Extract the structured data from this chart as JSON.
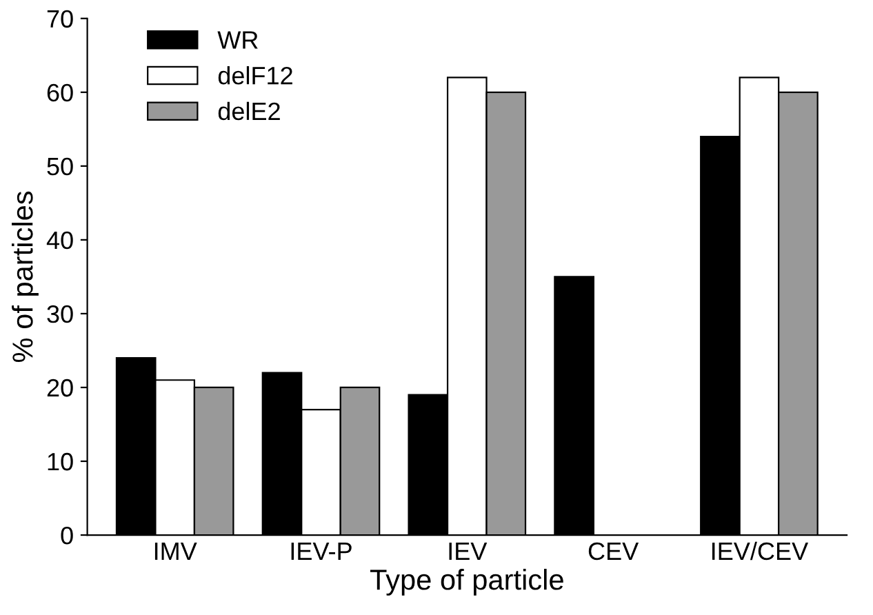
{
  "chart_data": {
    "type": "bar",
    "xlabel": "Type of particle",
    "ylabel": "% of particles",
    "categories": [
      "IMV",
      "IEV-P",
      "IEV",
      "CEV",
      "IEV/CEV"
    ],
    "series": [
      {
        "name": "WR",
        "color": "#000000",
        "values": [
          24,
          22,
          19,
          35,
          54
        ]
      },
      {
        "name": "delF12",
        "color": "#ffffff",
        "values": [
          21,
          17,
          62,
          null,
          62
        ]
      },
      {
        "name": "delE2",
        "color": "#999999",
        "values": [
          20,
          20,
          60,
          null,
          60
        ]
      }
    ],
    "ylim": [
      0,
      70
    ],
    "yticks": [
      0,
      10,
      20,
      30,
      40,
      50,
      60,
      70
    ],
    "grid": false,
    "legend": "top left"
  }
}
